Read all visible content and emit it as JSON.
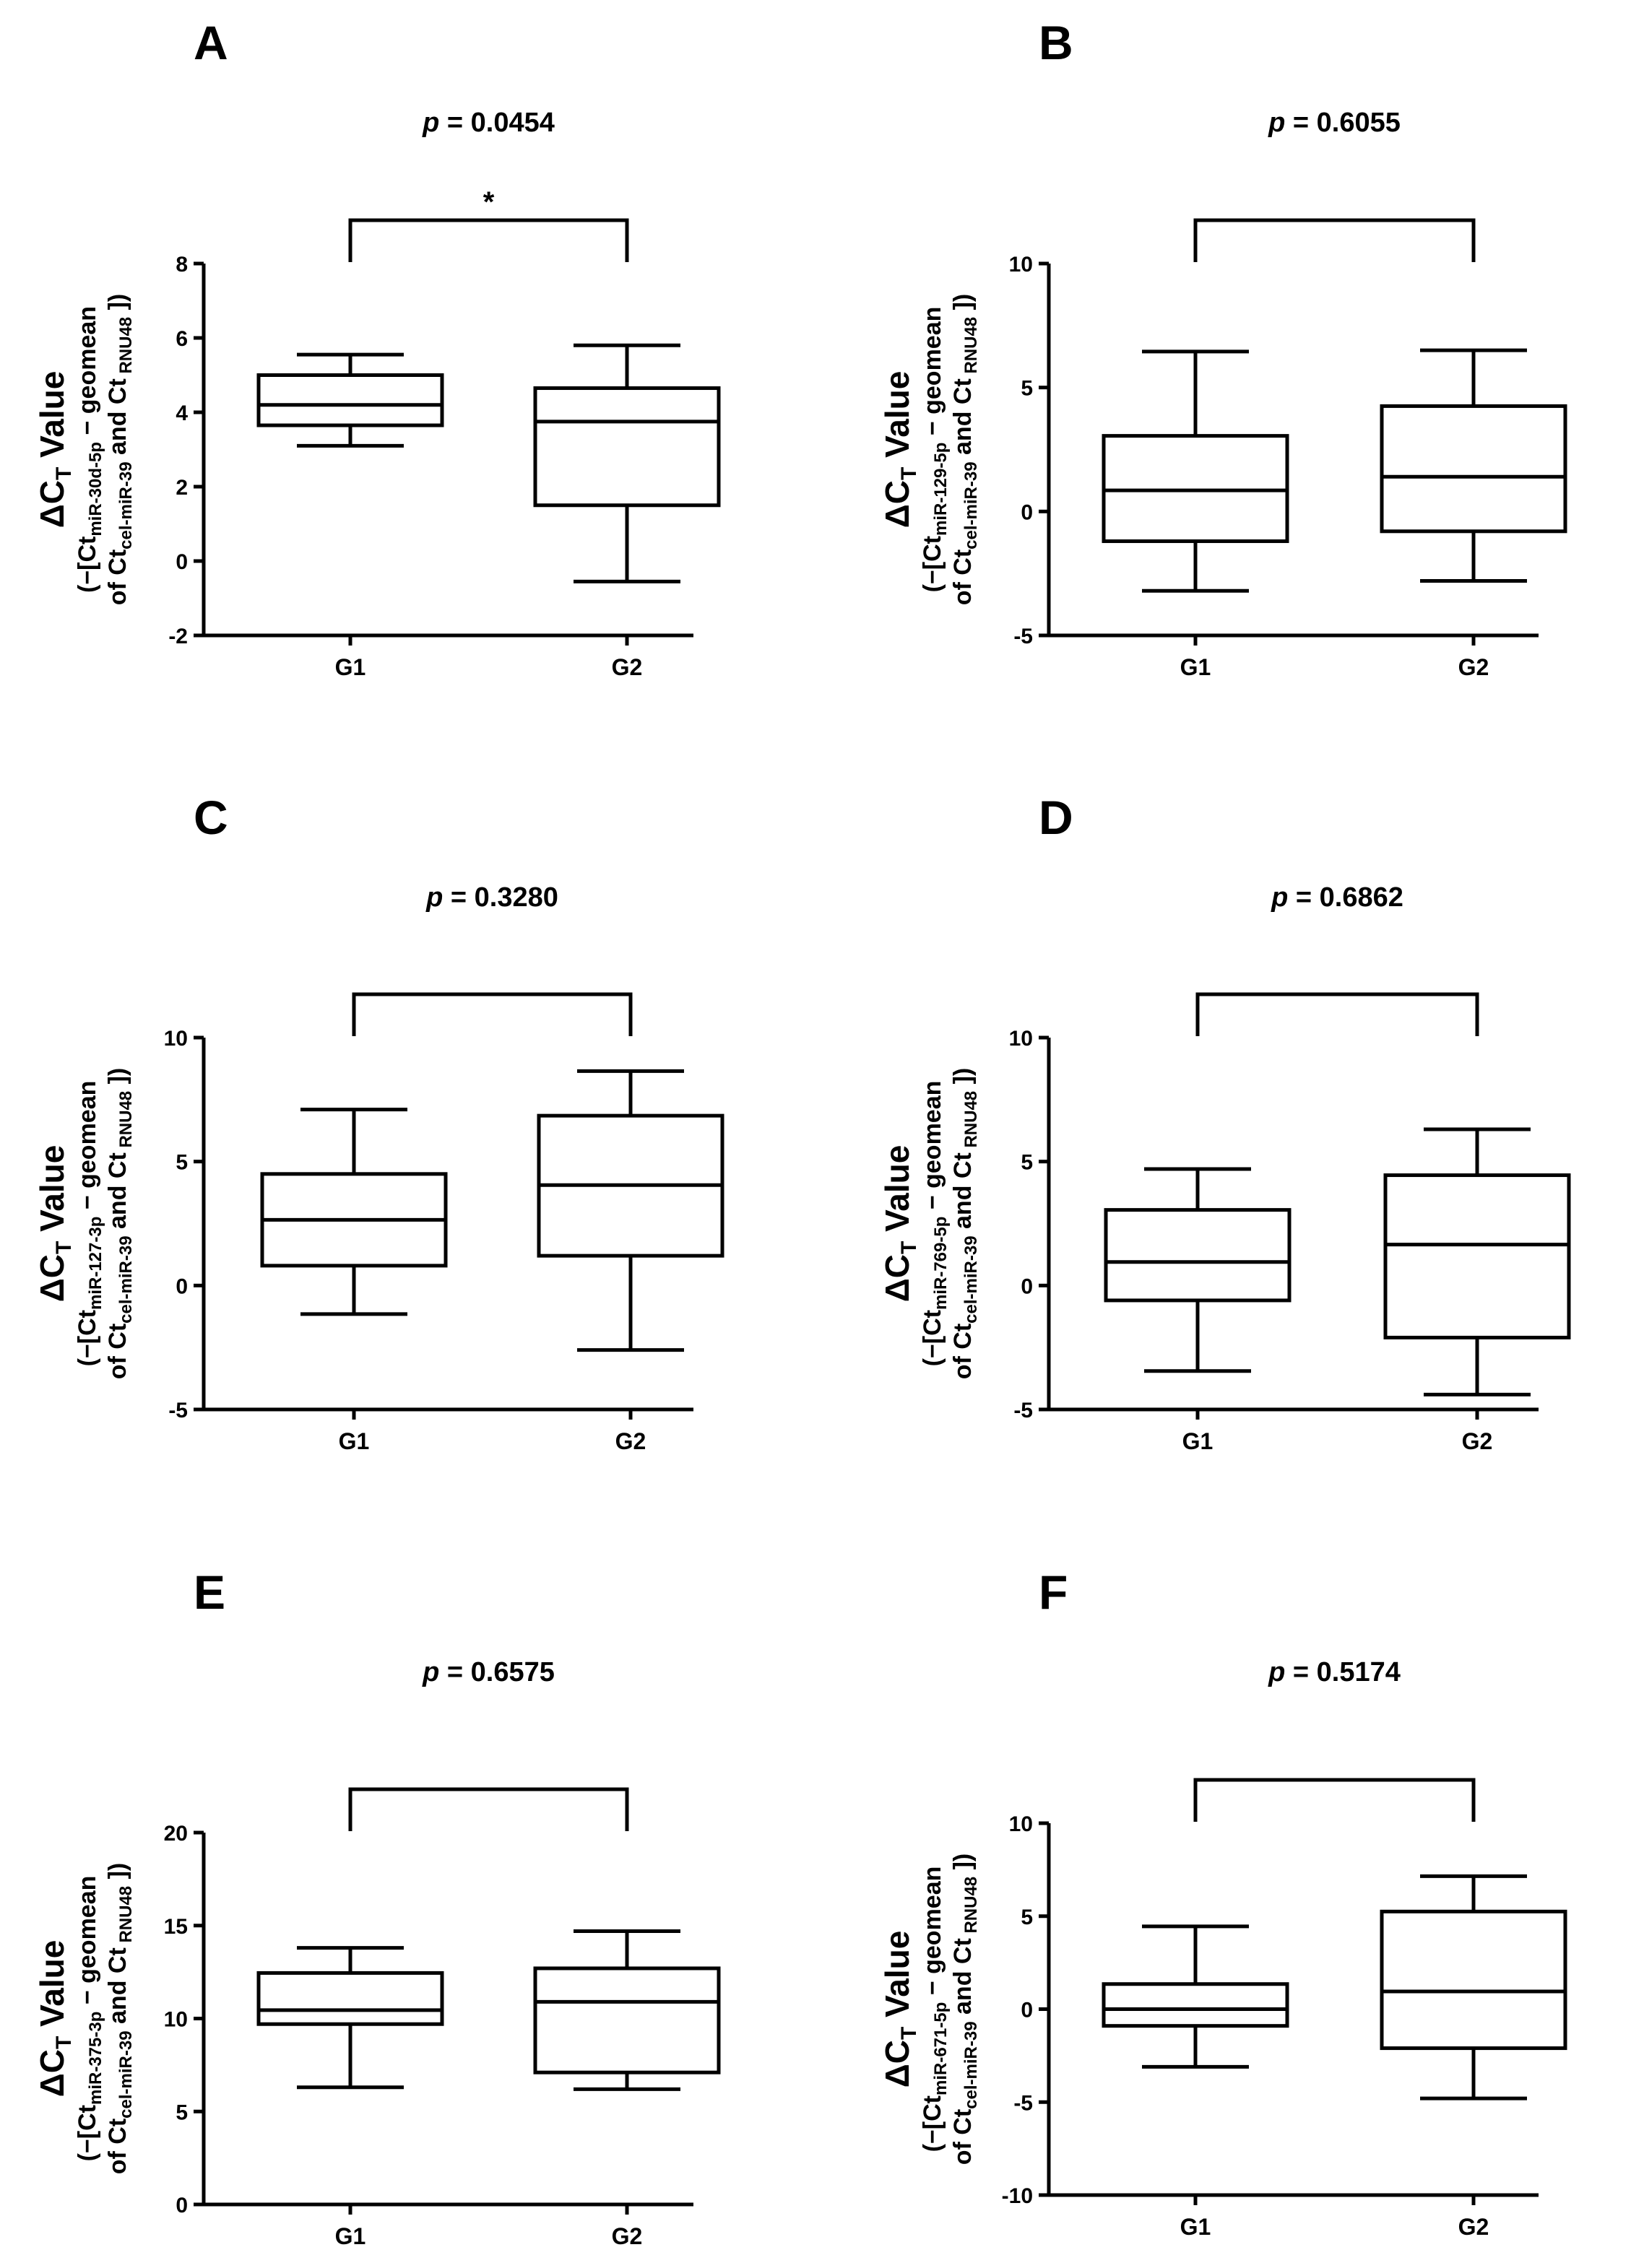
{
  "figure": {
    "ylabel_line1_prefix": "ΔC",
    "ylabel_line1_sub": "T",
    "ylabel_line1_suffix": " Value",
    "ylabel_line3": {
      "prefix": "of Ct",
      "sub1": "cel-miR-39",
      "mid": " and Ct",
      "sub2": " RNU48",
      "suffix": " ])"
    }
  },
  "chart_data": [
    {
      "panel": "A",
      "type": "box",
      "title": "p = 0.0454",
      "p_symbol": "p",
      "p_value_text": " = 0.0454",
      "significance": "*",
      "mirna": "miR-30d-5p",
      "ylabel_line2_prefix": "(−[Ct",
      "ylabel_line2_suffix": " − geomean",
      "categories": [
        "G1",
        "G2"
      ],
      "ylim": [
        -2,
        8
      ],
      "yticks": [
        -2,
        0,
        2,
        4,
        6,
        8
      ],
      "boxes": [
        {
          "name": "G1",
          "min": 3.1,
          "q1": 3.65,
          "median": 4.2,
          "q3": 5.0,
          "max": 5.55
        },
        {
          "name": "G2",
          "min": -0.55,
          "q1": 1.5,
          "median": 3.75,
          "q3": 4.65,
          "max": 5.8
        }
      ]
    },
    {
      "panel": "B",
      "type": "box",
      "title": "p = 0.6055",
      "p_symbol": "p",
      "p_value_text": " = 0.6055",
      "significance": "",
      "mirna": "miR-129-5p",
      "ylabel_line2_prefix": "(−[Ct",
      "ylabel_line2_suffix": " − geomean",
      "categories": [
        "G1",
        "G2"
      ],
      "ylim": [
        -5,
        10
      ],
      "yticks": [
        -5,
        0,
        5,
        10
      ],
      "boxes": [
        {
          "name": "G1",
          "min": -3.2,
          "q1": -1.2,
          "median": 0.85,
          "q3": 3.05,
          "max": 6.45
        },
        {
          "name": "G2",
          "min": -2.8,
          "q1": -0.8,
          "median": 1.4,
          "q3": 4.25,
          "max": 6.5
        }
      ]
    },
    {
      "panel": "C",
      "type": "box",
      "title": "p = 0.3280",
      "p_symbol": "p",
      "p_value_text": " = 0.3280",
      "significance": "",
      "mirna": "miR-127-3p",
      "ylabel_line2_prefix": "(−[Ct",
      "ylabel_line2_suffix": " − geomean",
      "categories": [
        "G1",
        "G2"
      ],
      "ylim": [
        -5,
        10
      ],
      "yticks": [
        -5,
        0,
        5,
        10
      ],
      "boxes": [
        {
          "name": "G1",
          "min": -1.15,
          "q1": 0.8,
          "median": 2.65,
          "q3": 4.5,
          "max": 7.1
        },
        {
          "name": "G2",
          "min": -2.6,
          "q1": 1.2,
          "median": 4.05,
          "q3": 6.85,
          "max": 8.65
        }
      ]
    },
    {
      "panel": "D",
      "type": "box",
      "title": "p = 0.6862",
      "p_symbol": "p",
      "p_value_text": " = 0.6862",
      "significance": "",
      "mirna": "miR-769-5p",
      "ylabel_line2_prefix": "(−[Ct",
      "ylabel_line2_suffix": " − geomean",
      "categories": [
        "G1",
        "G2"
      ],
      "ylim": [
        -5,
        10
      ],
      "yticks": [
        -5,
        0,
        5,
        10
      ],
      "boxes": [
        {
          "name": "G1",
          "min": -3.45,
          "q1": -0.6,
          "median": 0.95,
          "q3": 3.05,
          "max": 4.7
        },
        {
          "name": "G2",
          "min": -4.4,
          "q1": -2.1,
          "median": 1.65,
          "q3": 4.45,
          "max": 6.3
        }
      ]
    },
    {
      "panel": "E",
      "type": "box",
      "title": "p = 0.6575",
      "p_symbol": "p",
      "p_value_text": " = 0.6575",
      "significance": "",
      "mirna": "miR-375-3p",
      "ylabel_line2_prefix": "(−[Ct",
      "ylabel_line2_suffix": " − geomean",
      "categories": [
        "G1",
        "G2"
      ],
      "ylim": [
        0,
        20
      ],
      "yticks": [
        0,
        5,
        10,
        15,
        20
      ],
      "boxes": [
        {
          "name": "G1",
          "min": 6.3,
          "q1": 9.7,
          "median": 10.45,
          "q3": 12.45,
          "max": 13.8
        },
        {
          "name": "G2",
          "min": 6.2,
          "q1": 7.1,
          "median": 10.9,
          "q3": 12.7,
          "max": 14.7
        }
      ]
    },
    {
      "panel": "F",
      "type": "box",
      "title": "p = 0.5174",
      "p_symbol": "p",
      "p_value_text": " = 0.5174",
      "significance": "",
      "mirna": "miR-671-5p",
      "ylabel_line2_prefix": "(−[Ct",
      "ylabel_line2_suffix": " − geomean",
      "categories": [
        "G1",
        "G2"
      ],
      "ylim": [
        -10,
        10
      ],
      "yticks": [
        -10,
        -5,
        0,
        5,
        10
      ],
      "boxes": [
        {
          "name": "G1",
          "min": -3.1,
          "q1": -0.9,
          "median": 0.0,
          "q3": 1.35,
          "max": 4.45
        },
        {
          "name": "G2",
          "min": -4.8,
          "q1": -2.1,
          "median": 0.95,
          "q3": 5.25,
          "max": 7.15
        }
      ]
    }
  ]
}
